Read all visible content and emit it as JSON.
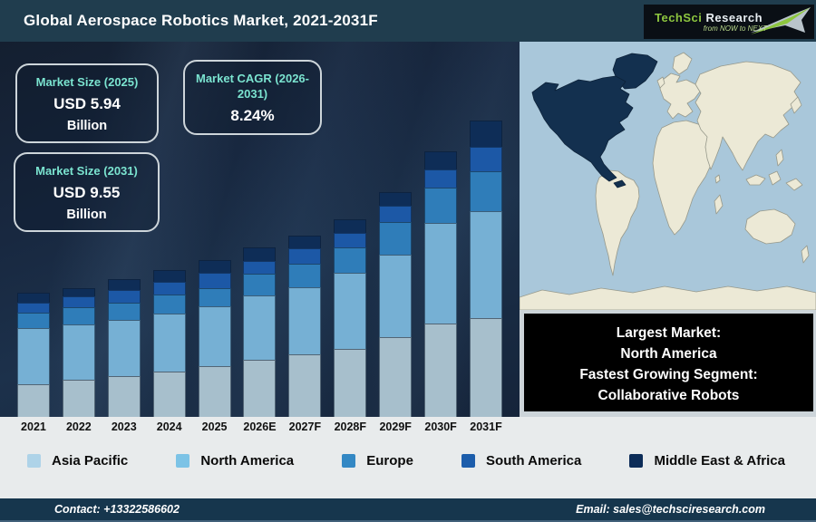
{
  "header": {
    "title": "Global Aerospace Robotics Market, 2021-2031F",
    "logo": {
      "brand_1": "TechSci",
      "brand_2": "Research",
      "tagline": "from NOW to NEXT",
      "green": "#8dc63f"
    }
  },
  "stats": [
    {
      "label": "Market Size (2025)",
      "value": "USD 5.94",
      "unit": "Billion"
    },
    {
      "label": "Market CAGR (2026-2031)",
      "value": "8.24%",
      "unit": ""
    },
    {
      "label": "Market Size (2031)",
      "value": "USD 9.55",
      "unit": "Billion"
    }
  ],
  "chart_data": {
    "type": "stacked_bar",
    "title": "Global Aerospace Robotics Market, 2021-2031F",
    "categories": [
      "2021",
      "2022",
      "2023",
      "2024",
      "2025",
      "2026E",
      "2027F",
      "2028F",
      "2029F",
      "2030F",
      "2031F"
    ],
    "units": "relative bar height in px (chart shows no value axis)",
    "stacking_order": "bottom-to-top as listed",
    "series": [
      {
        "name": "Asia Pacific",
        "color": "#a7bfcc",
        "legend_color": "#aed3e8",
        "values": [
          36,
          41,
          45,
          50,
          56,
          63,
          69,
          75,
          88,
          103,
          109
        ]
      },
      {
        "name": "North America",
        "color": "#76b0d4",
        "legend_color": "#7cc3e6",
        "values": [
          62,
          61,
          62,
          64,
          66,
          71,
          74,
          84,
          91,
          111,
          118
        ]
      },
      {
        "name": "Europe",
        "color": "#2f7db9",
        "legend_color": "#3388c4",
        "values": [
          17,
          19,
          19,
          21,
          20,
          24,
          26,
          28,
          36,
          39,
          44
        ]
      },
      {
        "name": "South America",
        "color": "#1c58a6",
        "legend_color": "#1c5dab",
        "values": [
          11,
          12,
          14,
          14,
          17,
          14,
          17,
          16,
          18,
          20,
          27
        ]
      },
      {
        "name": "Middle East & Africa",
        "color": "#0e2d57",
        "legend_color": "#0c2c58",
        "values": [
          11,
          9,
          12,
          13,
          14,
          15,
          14,
          15,
          15,
          20,
          29
        ]
      }
    ],
    "annotations": {
      "market_size_2025_usd_billion": 5.94,
      "market_size_2031_usd_billion": 9.55,
      "cagr_2026_2031_percent": 8.24
    },
    "legend_position": "bottom",
    "grid": false
  },
  "map": {
    "highlighted_region": "North America",
    "ocean_color": "#a9c7da",
    "land_color": "#ece9d6",
    "highlight_color": "#13304f"
  },
  "callout": {
    "lines": [
      "Largest Market:",
      "North America",
      "Fastest Growing Segment:",
      "Collaborative Robots"
    ]
  },
  "footer": {
    "contact": "Contact: +13322586602",
    "email": "Email: sales@techsciresearch.com"
  },
  "accent_colors": {
    "stat_label_teal": "#7be4d0",
    "logo_green": "#8dc63f"
  }
}
